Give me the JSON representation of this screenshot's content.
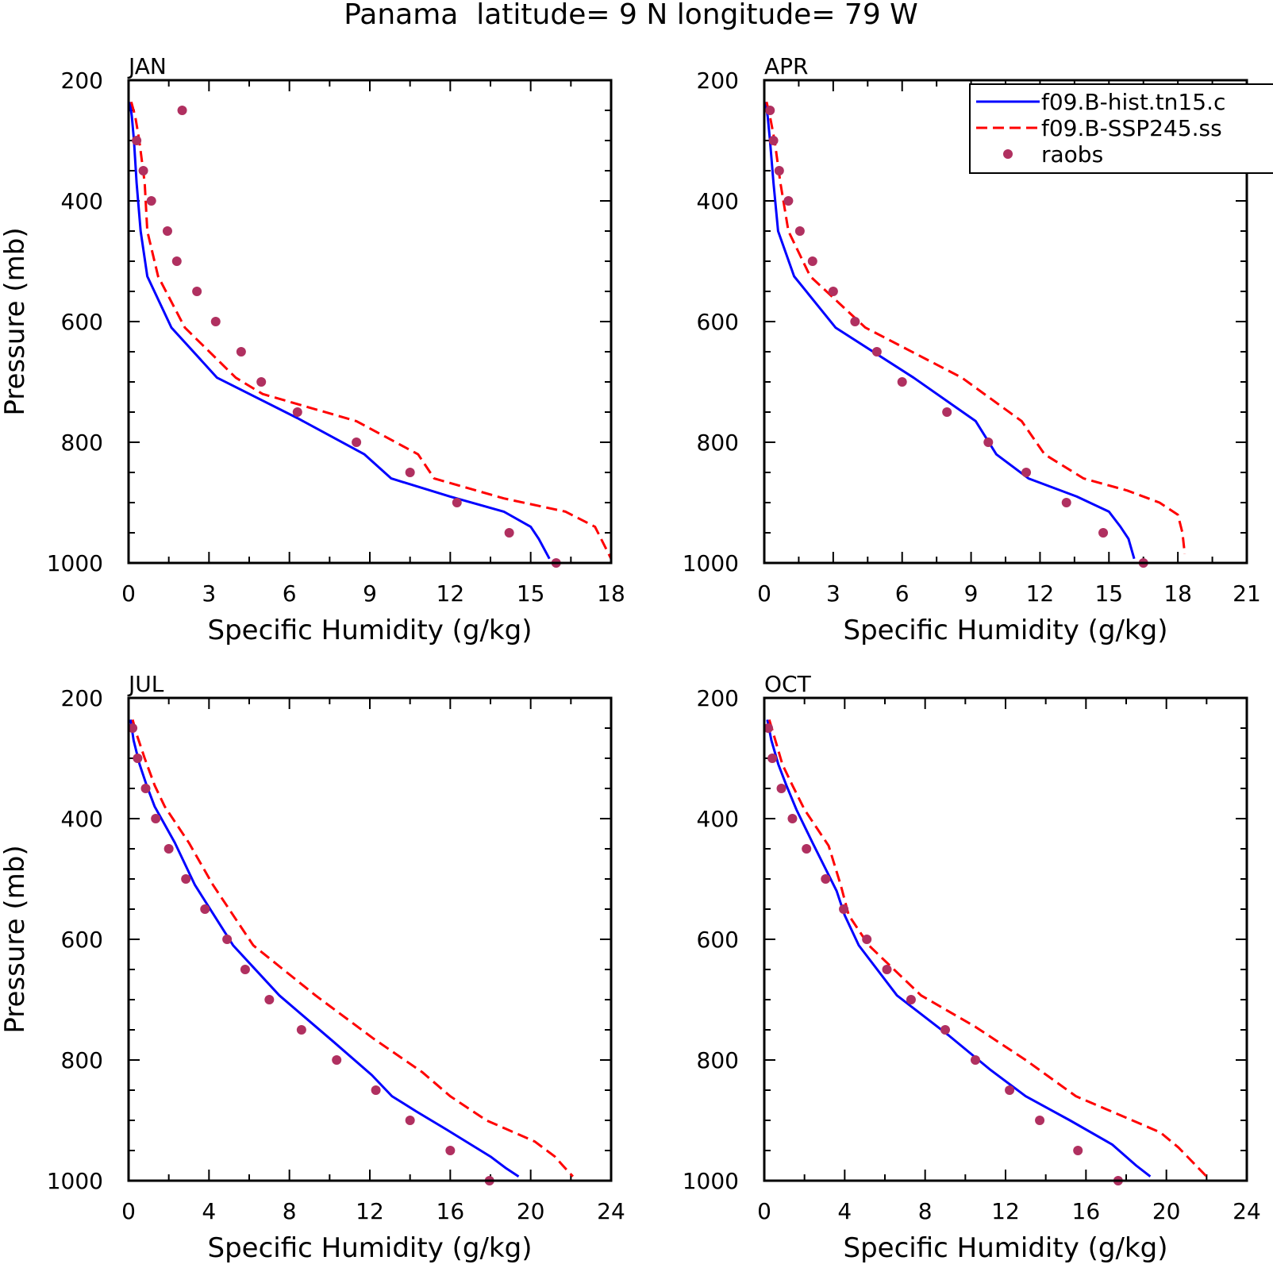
{
  "title": "Panama  latitude= 9 N longitude= 79 W",
  "legend": {
    "entries": [
      {
        "label": "f09.B-hist.tn15.c",
        "style": "solid",
        "color": "#0000ff"
      },
      {
        "label": "f09.B-SSP245.ss",
        "style": "dashed",
        "color": "#ff0000"
      },
      {
        "label": "raobs",
        "style": "marker",
        "color": "#b03060"
      }
    ]
  },
  "colors": {
    "hist": "#0000ff",
    "ssp": "#ff0000",
    "raobs": "#b03060"
  },
  "chart_data": [
    {
      "type": "line",
      "panel_label": "JAN",
      "xlabel": "Specific Humidity (g/kg)",
      "ylabel": "Pressure (mb)",
      "xlim": [
        0,
        18
      ],
      "ylim": [
        1000,
        200
      ],
      "y_reversed": true,
      "xticks": [
        0,
        3,
        6,
        9,
        12,
        15,
        18
      ],
      "yticks": [
        200,
        400,
        600,
        800,
        1000
      ],
      "series": [
        {
          "name": "f09.B-hist.tn15.c",
          "key": "hist",
          "x": [
            0.05,
            0.12,
            0.2,
            0.3,
            0.45,
            0.7,
            1.6,
            3.3,
            6.3,
            8.8,
            9.8,
            12.0,
            14.0,
            15.0,
            15.3,
            15.7
          ],
          "y": [
            236,
            260,
            300,
            370,
            450,
            525,
            610,
            693,
            760,
            820,
            860,
            890,
            915,
            940,
            960,
            993
          ]
        },
        {
          "name": "f09.B-SSP245.ss",
          "key": "ssp",
          "x": [
            0.1,
            0.25,
            0.4,
            0.6,
            0.7,
            1.1,
            2.1,
            4.0,
            5.0,
            8.5,
            10.8,
            11.4,
            14.0,
            16.3,
            17.4,
            18.0
          ],
          "y": [
            236,
            260,
            300,
            370,
            450,
            525,
            610,
            693,
            720,
            765,
            820,
            860,
            893,
            915,
            940,
            993
          ]
        }
      ],
      "raobs": {
        "x": [
          2.0,
          0.3,
          0.55,
          0.85,
          1.45,
          1.8,
          2.55,
          3.25,
          4.2,
          4.95,
          6.3,
          8.5,
          10.5,
          12.25,
          14.2,
          15.95
        ],
        "y": [
          250,
          300,
          350,
          400,
          450,
          500,
          550,
          600,
          650,
          700,
          750,
          800,
          850,
          900,
          950,
          1000
        ]
      }
    },
    {
      "type": "line",
      "panel_label": "APR",
      "xlabel": "Specific Humidity (g/kg)",
      "ylabel": "",
      "xlim": [
        0,
        21
      ],
      "ylim": [
        1000,
        200
      ],
      "y_reversed": true,
      "xticks": [
        0,
        3,
        6,
        9,
        12,
        15,
        18,
        21
      ],
      "yticks": [
        200,
        400,
        600,
        800,
        1000
      ],
      "series": [
        {
          "name": "f09.B-hist.tn15.c",
          "key": "hist",
          "x": [
            0.05,
            0.15,
            0.25,
            0.4,
            0.6,
            1.3,
            3.1,
            6.5,
            9.2,
            10.1,
            11.5,
            13.6,
            15.0,
            15.5,
            15.85,
            16.1
          ],
          "y": [
            236,
            260,
            300,
            370,
            450,
            525,
            610,
            693,
            765,
            820,
            860,
            890,
            915,
            940,
            960,
            993
          ]
        },
        {
          "name": "f09.B-SSP245.ss",
          "key": "ssp",
          "x": [
            0.1,
            0.25,
            0.45,
            0.7,
            1.05,
            2.0,
            4.4,
            8.6,
            11.2,
            12.2,
            13.9,
            15.8,
            17.2,
            18.0,
            18.2,
            18.3
          ],
          "y": [
            236,
            260,
            300,
            370,
            450,
            525,
            610,
            693,
            765,
            820,
            860,
            880,
            900,
            920,
            950,
            985
          ]
        }
      ],
      "raobs": {
        "x": [
          0.25,
          0.4,
          0.65,
          1.05,
          1.55,
          2.1,
          3.0,
          3.95,
          4.9,
          6.0,
          7.95,
          9.75,
          11.4,
          13.15,
          14.75,
          16.5
        ],
        "y": [
          250,
          300,
          350,
          400,
          450,
          500,
          550,
          600,
          650,
          700,
          750,
          800,
          850,
          900,
          950,
          1000
        ]
      }
    },
    {
      "type": "line",
      "panel_label": "JUL",
      "xlabel": "Specific Humidity (g/kg)",
      "ylabel": "Pressure (mb)",
      "xlim": [
        0,
        24
      ],
      "ylim": [
        1000,
        200
      ],
      "y_reversed": true,
      "xticks": [
        0,
        4,
        8,
        12,
        16,
        20,
        24
      ],
      "yticks": [
        200,
        400,
        600,
        800,
        1000
      ],
      "series": [
        {
          "name": "f09.B-hist.tn15.c",
          "key": "hist",
          "x": [
            0.1,
            0.25,
            0.55,
            0.9,
            1.3,
            2.3,
            3.3,
            5.2,
            7.5,
            10.2,
            12.1,
            13.1,
            14.3,
            15.8,
            18.0,
            18.8,
            19.4
          ],
          "y": [
            236,
            270,
            310,
            345,
            380,
            440,
            510,
            610,
            693,
            770,
            825,
            860,
            885,
            915,
            960,
            980,
            993
          ]
        },
        {
          "name": "f09.B-SSP245.ss",
          "key": "ssp",
          "x": [
            0.2,
            0.4,
            0.8,
            1.3,
            1.8,
            3.0,
            4.2,
            6.2,
            9.3,
            12.2,
            14.6,
            16.0,
            17.8,
            20.2,
            21.2,
            21.6,
            22.1
          ],
          "y": [
            236,
            260,
            300,
            345,
            380,
            440,
            510,
            610,
            693,
            765,
            820,
            860,
            900,
            935,
            960,
            975,
            993
          ]
        }
      ],
      "raobs": {
        "x": [
          0.2,
          0.45,
          0.85,
          1.35,
          2.0,
          2.85,
          3.8,
          4.9,
          5.8,
          7.0,
          8.6,
          10.35,
          12.3,
          14.0,
          16.0,
          17.95
        ],
        "y": [
          250,
          300,
          350,
          400,
          450,
          500,
          550,
          600,
          650,
          700,
          750,
          800,
          850,
          900,
          950,
          1000
        ]
      }
    },
    {
      "type": "line",
      "panel_label": "OCT",
      "xlabel": "Specific Humidity (g/kg)",
      "ylabel": "",
      "xlim": [
        0,
        24
      ],
      "ylim": [
        1000,
        200
      ],
      "y_reversed": true,
      "xticks": [
        0,
        4,
        8,
        12,
        16,
        20,
        24
      ],
      "yticks": [
        200,
        400,
        600,
        800,
        1000
      ],
      "series": [
        {
          "name": "f09.B-hist.tn15.c",
          "key": "hist",
          "x": [
            0.15,
            0.35,
            0.7,
            1.1,
            1.6,
            2.4,
            3.6,
            4.0,
            4.7,
            6.6,
            9.2,
            11.2,
            13.0,
            15.2,
            17.3,
            18.5,
            19.2
          ],
          "y": [
            236,
            270,
            310,
            345,
            385,
            440,
            520,
            560,
            610,
            693,
            760,
            815,
            860,
            900,
            940,
            975,
            993
          ]
        },
        {
          "name": "f09.B-SSP245.ss",
          "key": "ssp",
          "x": [
            0.25,
            0.55,
            0.9,
            1.4,
            2.0,
            3.2,
            3.8,
            4.2,
            5.2,
            7.8,
            10.5,
            13.0,
            15.5,
            17.6,
            19.7,
            20.6,
            22.0
          ],
          "y": [
            236,
            270,
            310,
            345,
            385,
            445,
            510,
            560,
            610,
            693,
            745,
            800,
            860,
            890,
            920,
            945,
            993
          ]
        }
      ],
      "raobs": {
        "x": [
          0.2,
          0.4,
          0.85,
          1.4,
          2.1,
          3.05,
          3.95,
          5.1,
          6.1,
          7.3,
          9.0,
          10.5,
          12.2,
          13.7,
          15.6,
          17.6
        ],
        "y": [
          250,
          300,
          350,
          400,
          450,
          500,
          550,
          600,
          650,
          700,
          750,
          800,
          850,
          900,
          950,
          1000
        ]
      }
    }
  ]
}
